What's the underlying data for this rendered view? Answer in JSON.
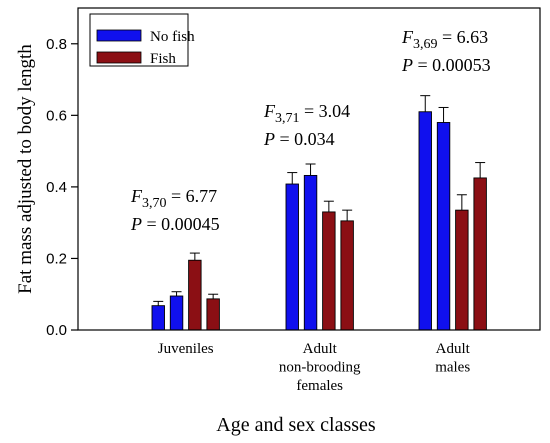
{
  "chart_data": {
    "type": "bar",
    "xlabel": "Age and sex classes",
    "ylabel": "Fat mass adjusted to body length",
    "ylim": [
      0,
      0.9
    ],
    "yticks": [
      "0.0",
      "0.2",
      "0.4",
      "0.6",
      "0.8"
    ],
    "ytick_values": [
      0,
      0.2,
      0.4,
      0.6,
      0.8
    ],
    "legend": {
      "placement": "top-left",
      "entries": [
        {
          "name": "No fish",
          "color": "#1010ee"
        },
        {
          "name": "Fish",
          "color": "#8b0f14"
        }
      ]
    },
    "groups": [
      {
        "label_lines": [
          "Juveniles"
        ],
        "bars": [
          {
            "series": "No fish",
            "value": 0.068,
            "error": 0.012
          },
          {
            "series": "No fish",
            "value": 0.095,
            "error": 0.012
          },
          {
            "series": "Fish",
            "value": 0.195,
            "error": 0.02
          },
          {
            "series": "Fish",
            "value": 0.087,
            "error": 0.013
          }
        ],
        "stat": {
          "letter": "F",
          "subscript": "3,70",
          "value": "= 6.77",
          "p": "= 0.00045"
        }
      },
      {
        "label_lines": [
          "Adult",
          "non-brooding",
          "females"
        ],
        "bars": [
          {
            "series": "No fish",
            "value": 0.408,
            "error": 0.032
          },
          {
            "series": "No fish",
            "value": 0.432,
            "error": 0.032
          },
          {
            "series": "Fish",
            "value": 0.33,
            "error": 0.03
          },
          {
            "series": "Fish",
            "value": 0.305,
            "error": 0.03
          }
        ],
        "stat": {
          "letter": "F",
          "subscript": "3,71",
          "value": "= 3.04",
          "p": "= 0.034"
        }
      },
      {
        "label_lines": [
          "Adult",
          "males"
        ],
        "bars": [
          {
            "series": "No fish",
            "value": 0.61,
            "error": 0.045
          },
          {
            "series": "No fish",
            "value": 0.58,
            "error": 0.042
          },
          {
            "series": "Fish",
            "value": 0.335,
            "error": 0.043
          },
          {
            "series": "Fish",
            "value": 0.425,
            "error": 0.043
          }
        ],
        "stat": {
          "letter": "F",
          "subscript": "3,69",
          "value": "= 6.63",
          "p": "= 0.00053"
        }
      }
    ]
  }
}
